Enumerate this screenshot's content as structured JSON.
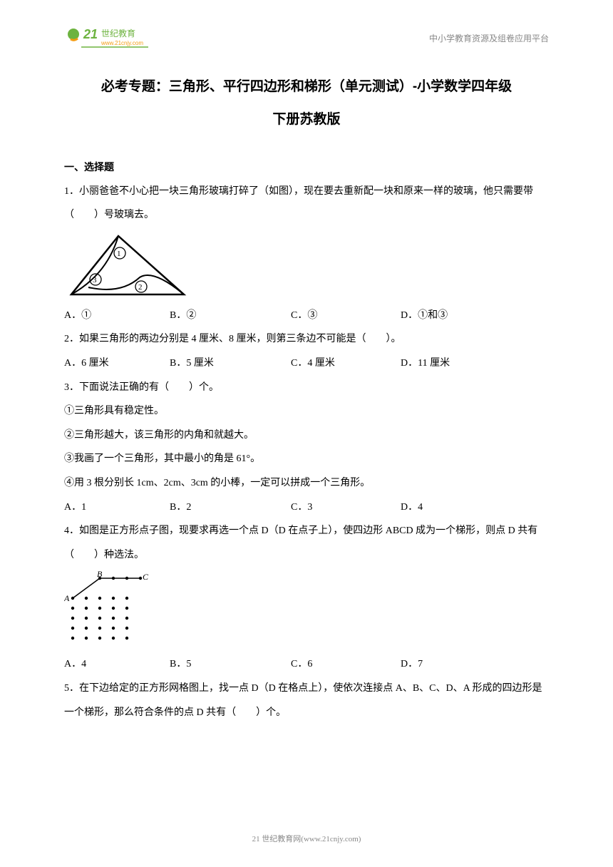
{
  "header": {
    "logo_text_big": "21",
    "logo_text_cn": "世纪教育",
    "logo_url": "www.21cnjy.com",
    "right_text": "中小学教育资源及组卷应用平台"
  },
  "title": {
    "line1": "必考专题：三角形、平行四边形和梯形（单元测试）-小学数学四年级",
    "line2": "下册苏教版"
  },
  "section1": "一、选择题",
  "q1": {
    "text": "1．小丽爸爸不小心把一块三角形玻璃打碎了（如图），现在要去重新配一块和原来一样的玻璃，他只需要带（　　）号玻璃去。",
    "figure_labels": {
      "a": "①",
      "b": "②",
      "c": "③"
    },
    "optA": "A．①",
    "optB": "B．②",
    "optC": "C．③",
    "optD": "D．①和③"
  },
  "q2": {
    "text": "2．如果三角形的两边分别是 4 厘米、8 厘米，则第三条边不可能是（　　）。",
    "optA": "A．6 厘米",
    "optB": "B．5 厘米",
    "optC": "C．4 厘米",
    "optD": "D．11 厘米"
  },
  "q3": {
    "text": "3．下面说法正确的有（　　）个。",
    "s1": "①三角形具有稳定性。",
    "s2": "②三角形越大，该三角形的内角和就越大。",
    "s3": "③我画了一个三角形，其中最小的角是 61°。",
    "s4": "④用 3 根分别长 1cm、2cm、3cm 的小棒，一定可以拼成一个三角形。",
    "optA": "A．1",
    "optB": "B．2",
    "optC": "C．3",
    "optD": "D．4"
  },
  "q4": {
    "text": "4．如图是正方形点子图，现要求再选一个点 D（D 在点子上），使四边形 ABCD 成为一个梯形，则点 D 共有（　　）种选法。",
    "labelA": "A",
    "labelB": "B",
    "labelC": "C",
    "optA": "A．4",
    "optB": "B．5",
    "optC": "C．6",
    "optD": "D．7"
  },
  "q5": {
    "text": "5．在下边给定的正方形网格图上，找一点 D（D 在格点上），使依次连接点 A、B、C、D、A 形成的四边形是一个梯形，那么符合条件的点 D 共有（　　）个。"
  },
  "footer": "21 世纪教育网(www.21cnjy.com)",
  "colors": {
    "text": "#000000",
    "gray": "#888888",
    "logo_green": "#6db33f",
    "logo_orange": "#f39c12",
    "bg": "#ffffff"
  },
  "figure_styles": {
    "triangle": {
      "stroke": "#000000",
      "stroke_width": 2,
      "fill": "none"
    },
    "dots": {
      "radius": 2.2,
      "fill": "#000000",
      "spacing": 19
    }
  }
}
